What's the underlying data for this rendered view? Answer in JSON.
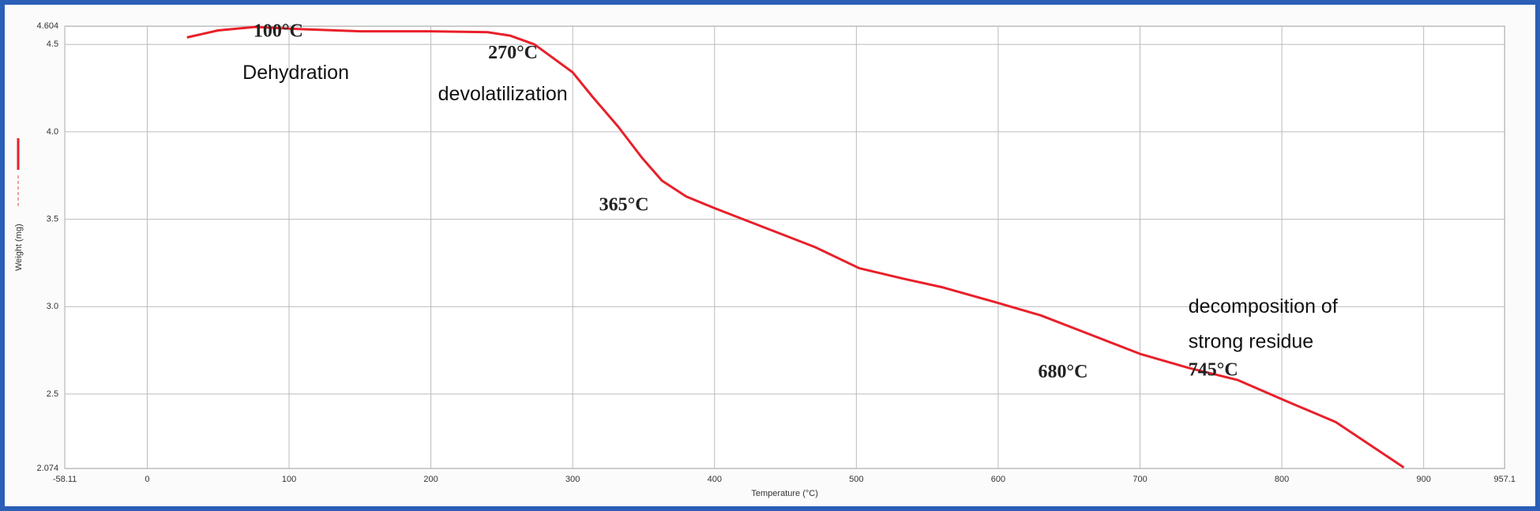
{
  "chart_data": {
    "type": "line",
    "x_label": "Temperature (°C)",
    "y_label": "Weight (mg)",
    "x": [
      28,
      50,
      76,
      100,
      150,
      200,
      240,
      256,
      273,
      300,
      314,
      332,
      349,
      363,
      380,
      401,
      436,
      471,
      502,
      533,
      561,
      596,
      630,
      665,
      700,
      734,
      769,
      803,
      838,
      886
    ],
    "series": [
      {
        "color": "#e8202a",
        "values": [
          4.54,
          4.58,
          4.6,
          4.59,
          4.575,
          4.575,
          4.57,
          4.55,
          4.5,
          4.34,
          4.2,
          4.03,
          3.85,
          3.72,
          3.63,
          3.56,
          3.45,
          3.34,
          3.22,
          3.16,
          3.11,
          3.03,
          2.95,
          2.84,
          2.73,
          2.65,
          2.58,
          2.46,
          2.34,
          2.08
        ]
      }
    ],
    "xlim": [
      -58.11,
      957.1
    ],
    "ylim": [
      2.074,
      4.604
    ],
    "xticks": [
      -58.11,
      0,
      100,
      200,
      300,
      400,
      500,
      600,
      700,
      800,
      900,
      957.1
    ],
    "yticks": [
      2.074,
      2.5,
      {
        "value": 3,
        "label": "3.0"
      },
      3.5,
      {
        "value": 4,
        "label": "4.0"
      },
      4.5,
      4.604
    ],
    "grid": true,
    "annotations": [
      "100°C",
      "Dehydration",
      "270°C",
      "devolatilization",
      "365°C",
      "680°C",
      "745°C",
      "decomposition of",
      "strong residue"
    ]
  }
}
